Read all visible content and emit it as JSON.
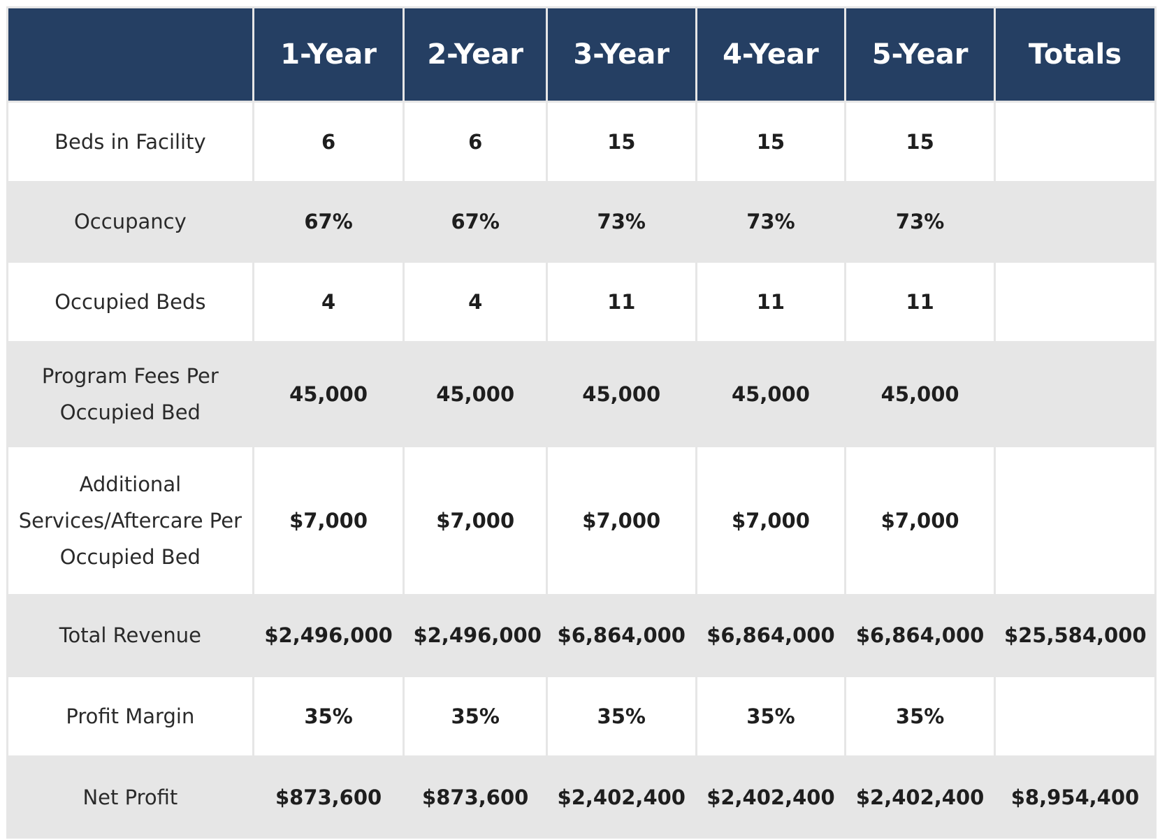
{
  "table": {
    "headers": [
      "",
      "1-Year",
      "2-Year",
      "3-Year",
      "4-Year",
      "5-Year",
      "Totals"
    ],
    "rows": [
      {
        "label": "Beds in Facility",
        "values": [
          "6",
          "6",
          "15",
          "15",
          "15",
          ""
        ]
      },
      {
        "label": "Occupancy",
        "values": [
          "67%",
          "67%",
          "73%",
          "73%",
          "73%",
          ""
        ]
      },
      {
        "label": "Occupied Beds",
        "values": [
          "4",
          "4",
          "11",
          "11",
          "11",
          ""
        ]
      },
      {
        "label": "Program Fees Per Occupied Bed",
        "values": [
          "45,000",
          "45,000",
          "45,000",
          "45,000",
          "45,000",
          ""
        ]
      },
      {
        "label": "Additional Services/Aftercare Per Occupied Bed",
        "values": [
          "$7,000",
          "$7,000",
          "$7,000",
          "$7,000",
          "$7,000",
          ""
        ]
      },
      {
        "label": "Total Revenue",
        "values": [
          "$2,496,000",
          "$2,496,000",
          "$6,864,000",
          "$6,864,000",
          "$6,864,000",
          "$25,584,000"
        ]
      },
      {
        "label": "Profit Margin",
        "values": [
          "35%",
          "35%",
          "35%",
          "35%",
          "35%",
          ""
        ]
      },
      {
        "label": "Net Profit",
        "values": [
          "$873,600",
          "$873,600",
          "$2,402,400",
          "$2,402,400",
          "$2,402,400",
          "$8,954,400"
        ]
      }
    ]
  },
  "colors": {
    "header_background": "#253f63",
    "header_text": "#ffffff",
    "stripe_background": "#e6e6e6",
    "row_background": "#ffffff",
    "border": "#e6e6e6"
  }
}
